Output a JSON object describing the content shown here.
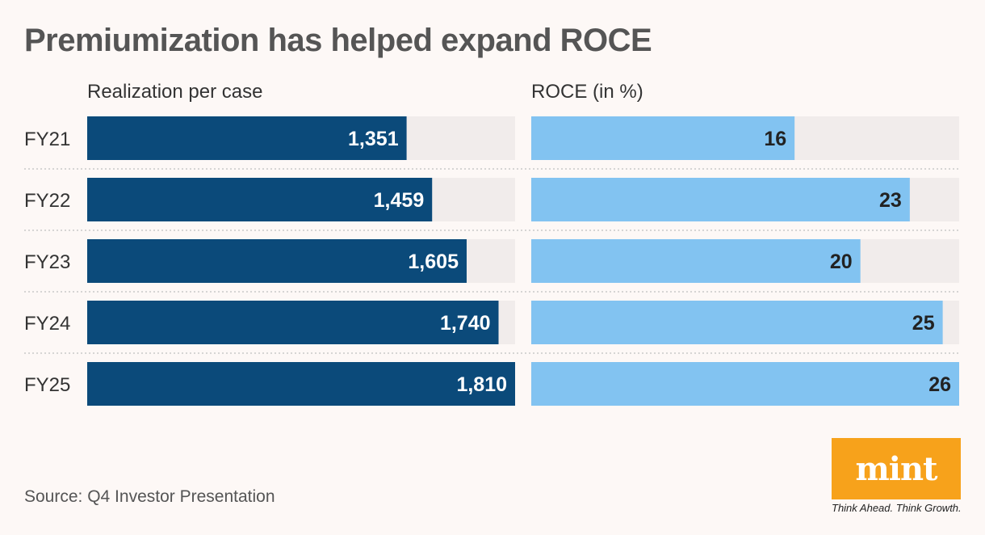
{
  "chart_data": {
    "type": "bar",
    "orientation": "horizontal",
    "title": "Premiumization has helped expand ROCE",
    "categories": [
      "FY21",
      "FY22",
      "FY23",
      "FY24",
      "FY25"
    ],
    "series": [
      {
        "name": "Realization per case",
        "values": [
          1351,
          1459,
          1605,
          1740,
          1810
        ],
        "labels": [
          "1,351",
          "1,459",
          "1,605",
          "1,740",
          "1,810"
        ],
        "color": "#0b4a7a",
        "label_color": "#ffffff",
        "xlim": [
          0,
          1810
        ]
      },
      {
        "name": "ROCE (in %)",
        "values": [
          16,
          23,
          20,
          25,
          26
        ],
        "labels": [
          "16",
          "23",
          "20",
          "25",
          "26"
        ],
        "color": "#82c3f1",
        "label_color": "#222222",
        "xlim": [
          0,
          26
        ]
      }
    ],
    "track_color": "#f1eceb",
    "separator_color": "#c9c9c9",
    "category_label_color": "#333333"
  },
  "footer": {
    "source": "Source: Q4 Investor Presentation"
  },
  "logo": {
    "text": "mint",
    "tagline": "Think Ahead. Think Growth.",
    "color": "#f7a21b"
  }
}
